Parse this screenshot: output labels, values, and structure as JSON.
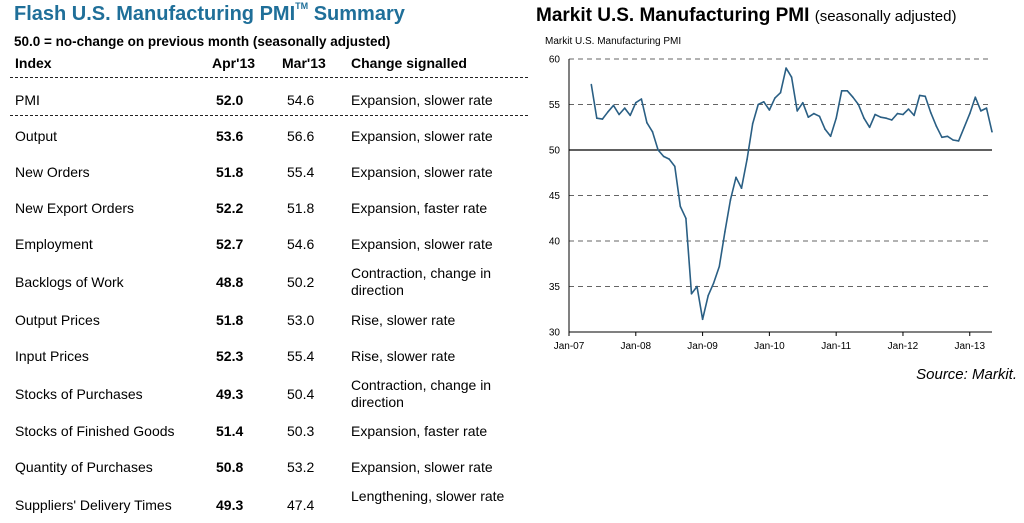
{
  "table": {
    "title": "Flash U.S. Manufacturing PMI",
    "title_tm": "TM",
    "title_suffix": "Summary",
    "subtitle": "50.0 = no-change on previous month (seasonally adjusted)",
    "headers": {
      "index": "Index",
      "apr": "Apr'13",
      "mar": "Mar'13",
      "change": "Change signalled"
    },
    "rows": [
      {
        "name": "PMI",
        "apr": "52.0",
        "mar": "54.6",
        "change": "Expansion, slower rate"
      },
      {
        "name": "Output",
        "apr": "53.6",
        "mar": "56.6",
        "change": "Expansion, slower rate"
      },
      {
        "name": "New Orders",
        "apr": "51.8",
        "mar": "55.4",
        "change": "Expansion, slower rate"
      },
      {
        "name": "New Export Orders",
        "apr": "52.2",
        "mar": "51.8",
        "change": "Expansion, faster rate"
      },
      {
        "name": "Employment",
        "apr": "52.7",
        "mar": "54.6",
        "change": "Expansion, slower rate"
      },
      {
        "name": "Backlogs of Work",
        "apr": "48.8",
        "mar": "50.2",
        "change": "Contraction, change in direction"
      },
      {
        "name": "Output Prices",
        "apr": "51.8",
        "mar": "53.0",
        "change": "Rise, slower rate"
      },
      {
        "name": "Input Prices",
        "apr": "52.3",
        "mar": "55.4",
        "change": "Rise, slower rate"
      },
      {
        "name": "Stocks of Purchases",
        "apr": "49.3",
        "mar": "50.4",
        "change": "Contraction, change in direction"
      },
      {
        "name": "Stocks of Finished Goods",
        "apr": "51.4",
        "mar": "50.3",
        "change": "Expansion, faster rate"
      },
      {
        "name": "Quantity of Purchases",
        "apr": "50.8",
        "mar": "53.2",
        "change": "Expansion, slower rate"
      },
      {
        "name": "Suppliers' Delivery Times",
        "apr": "49.3",
        "mar": "47.4",
        "change": "Lengthening, slower rate"
      }
    ]
  },
  "chart_title": "Markit U.S. Manufacturing PMI",
  "chart_subtitle": "(seasonally adjusted)",
  "source": "Source: Markit.",
  "chart_data": {
    "type": "line",
    "title": "Markit U.S. Manufacturing PMI",
    "subtitle": "(seasonally adjusted)",
    "series_label": "Markit U.S. Manufacturing PMI",
    "xlabel": "",
    "ylabel": "",
    "ylim": [
      30,
      60
    ],
    "yticks": [
      30,
      35,
      40,
      45,
      50,
      55,
      60
    ],
    "grid": "dashed horizontal",
    "reference_line": 50,
    "line_color": "#2a5f84",
    "xticks": [
      {
        "label": "Jan-07",
        "x": 2007.0
      },
      {
        "label": "Jan-08",
        "x": 2008.0
      },
      {
        "label": "Jan-09",
        "x": 2009.0
      },
      {
        "label": "Jan-10",
        "x": 2010.0
      },
      {
        "label": "Jan-11",
        "x": 2011.0
      },
      {
        "label": "Jan-12",
        "x": 2012.0
      },
      {
        "label": "Jan-13",
        "x": 2013.0
      }
    ],
    "xlim": [
      2007.0,
      2013.333
    ],
    "series": [
      {
        "start": "2007-05",
        "values": [
          57.2,
          53.5,
          53.4,
          54.2,
          54.9,
          53.9,
          54.6,
          53.8,
          55.2,
          55.6,
          53.0,
          52.0,
          50.0,
          49.3,
          49.0,
          48.2,
          43.8,
          42.5,
          34.2,
          35.0,
          31.4,
          34.0,
          35.4,
          37.2,
          41.0,
          44.5,
          47.0,
          45.8,
          49.0,
          52.9,
          55.0,
          55.3,
          54.4,
          55.7,
          56.3,
          59.0,
          58.0,
          54.3,
          55.2,
          53.6,
          54.0,
          53.7,
          52.3,
          51.5,
          53.5,
          56.5,
          56.5,
          55.8,
          55.0,
          53.5,
          52.5,
          53.9,
          53.6,
          53.5,
          53.3,
          54.0,
          53.9,
          54.5,
          53.8,
          56.0,
          55.9,
          54.1,
          52.6,
          51.4,
          51.5,
          51.1,
          51.0,
          52.5,
          54.0,
          55.8,
          54.3,
          54.6,
          52.0
        ]
      }
    ]
  }
}
